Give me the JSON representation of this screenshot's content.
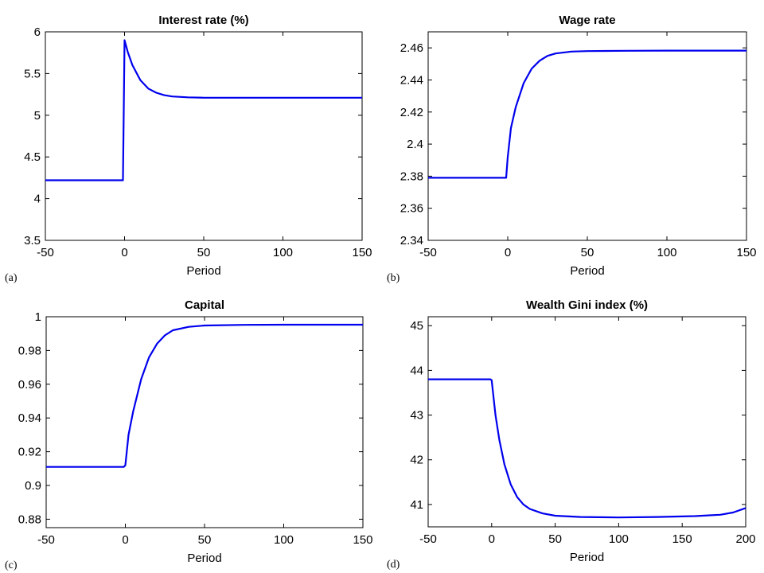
{
  "chart_data": [
    {
      "type": "line",
      "panel_label": "(a)",
      "title": "Interest rate (%)",
      "xlabel": "Period",
      "ylabel": "",
      "xlim": [
        -50,
        150
      ],
      "ylim": [
        3.5,
        6
      ],
      "xticks": [
        -50,
        0,
        50,
        100,
        150
      ],
      "yticks": [
        3.5,
        4,
        4.5,
        5,
        5.5,
        6
      ],
      "ytick_labels": [
        "3.5",
        "4",
        "4.5",
        "5",
        "5.5",
        "6"
      ],
      "grid": false,
      "color": "#0000ee",
      "x": [
        -50,
        -1,
        0,
        2,
        5,
        10,
        15,
        20,
        25,
        30,
        40,
        50,
        75,
        100,
        150
      ],
      "y": [
        4.22,
        4.22,
        5.9,
        5.76,
        5.6,
        5.42,
        5.32,
        5.27,
        5.24,
        5.225,
        5.215,
        5.21,
        5.21,
        5.21,
        5.21
      ]
    },
    {
      "type": "line",
      "panel_label": "(b)",
      "title": "Wage rate",
      "xlabel": "Period",
      "ylabel": "",
      "xlim": [
        -50,
        150
      ],
      "ylim": [
        2.34,
        2.47
      ],
      "xticks": [
        -50,
        0,
        50,
        100,
        150
      ],
      "yticks": [
        2.34,
        2.36,
        2.38,
        2.4,
        2.42,
        2.44,
        2.46
      ],
      "ytick_labels": [
        "2.34",
        "2.36",
        "2.38",
        "2.4",
        "2.42",
        "2.44",
        "2.46"
      ],
      "grid": false,
      "color": "#0000ee",
      "x": [
        -50,
        -1,
        0,
        2,
        5,
        10,
        15,
        20,
        25,
        30,
        40,
        50,
        75,
        100,
        150
      ],
      "y": [
        2.379,
        2.379,
        2.392,
        2.41,
        2.423,
        2.438,
        2.447,
        2.452,
        2.455,
        2.4565,
        2.4577,
        2.458,
        2.4582,
        2.4583,
        2.4583
      ]
    },
    {
      "type": "line",
      "panel_label": "(c)",
      "title": "Capital",
      "xlabel": "Period",
      "ylabel": "",
      "xlim": [
        -50,
        150
      ],
      "ylim": [
        0.875,
        1.0
      ],
      "xticks": [
        -50,
        0,
        50,
        100,
        150
      ],
      "yticks": [
        0.88,
        0.9,
        0.92,
        0.94,
        0.96,
        0.98,
        1.0
      ],
      "ytick_labels": [
        "0.88",
        "0.9",
        "0.92",
        "0.94",
        "0.96",
        "0.98",
        "1"
      ],
      "grid": false,
      "color": "#0000ee",
      "x": [
        -50,
        -1,
        0,
        2,
        5,
        10,
        15,
        20,
        25,
        30,
        40,
        50,
        75,
        100,
        150
      ],
      "y": [
        0.911,
        0.911,
        0.912,
        0.93,
        0.944,
        0.963,
        0.976,
        0.984,
        0.989,
        0.992,
        0.994,
        0.9948,
        0.9952,
        0.9953,
        0.9953
      ]
    },
    {
      "type": "line",
      "panel_label": "(d)",
      "title": "Wealth Gini index (%)",
      "xlabel": "Period",
      "ylabel": "",
      "xlim": [
        -50,
        200
      ],
      "ylim": [
        40.5,
        45.2
      ],
      "xticks": [
        -50,
        0,
        50,
        100,
        150,
        200
      ],
      "yticks": [
        41,
        42,
        43,
        44,
        45
      ],
      "ytick_labels": [
        "41",
        "42",
        "43",
        "44",
        "45"
      ],
      "grid": false,
      "color": "#0000ee",
      "x": [
        -50,
        -1,
        0,
        3,
        6,
        10,
        15,
        20,
        25,
        30,
        40,
        50,
        70,
        100,
        130,
        160,
        180,
        190,
        200
      ],
      "y": [
        43.8,
        43.8,
        43.78,
        43.0,
        42.45,
        41.9,
        41.45,
        41.17,
        41.0,
        40.9,
        40.8,
        40.75,
        40.72,
        40.71,
        40.72,
        40.74,
        40.77,
        40.82,
        40.92
      ]
    }
  ]
}
